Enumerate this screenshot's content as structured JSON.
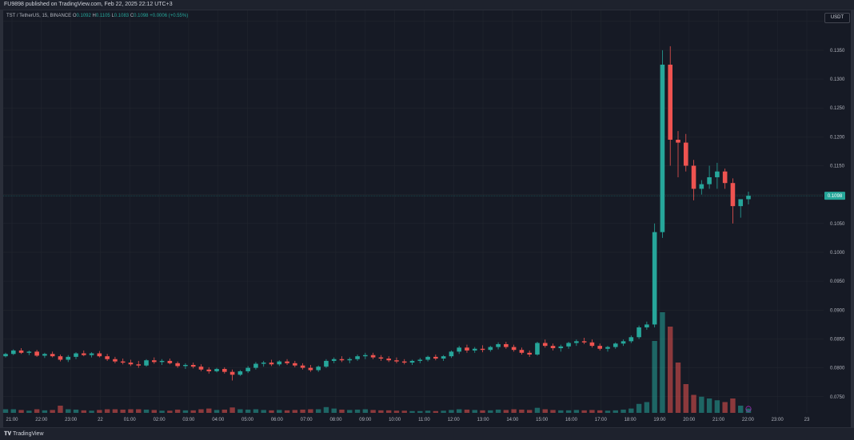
{
  "header": {
    "published_text": "FU9898 published on TradingView.com, Feb 22, 2025 22:12 UTC+3"
  },
  "legend": {
    "symbol": "TST / TetherUS, 15, BINANCE",
    "o_label": "O",
    "o_value": "0.1092",
    "h_label": "H",
    "h_value": "0.1105",
    "l_label": "L",
    "l_value": "0.1083",
    "c_label": "C",
    "c_value": "0.1098",
    "change": "+0.0006 (+0.55%)"
  },
  "currency_label": "USDT",
  "last_price_label": "0.1098",
  "footer": {
    "brand": "TradingView"
  },
  "colors": {
    "up": "#26a69a",
    "down": "#ef5350",
    "background": "#161a25",
    "grid": "#22262f"
  },
  "chart_data": {
    "type": "candlestick",
    "ylim": [
      0.0722,
      0.1419
    ],
    "yticks": [
      "0.1400",
      "0.1350",
      "0.1300",
      "0.1250",
      "0.1200",
      "0.1150",
      "0.1100",
      "0.1050",
      "0.1000",
      "0.0950",
      "0.0900",
      "0.0850",
      "0.0800",
      "0.0750"
    ],
    "xticks": [
      "21:00",
      "22:00",
      "23:00",
      "22",
      "01:00",
      "02:00",
      "03:00",
      "04:00",
      "05:00",
      "06:00",
      "07:00",
      "08:00",
      "09:00",
      "10:00",
      "11:00",
      "12:00",
      "13:00",
      "14:00",
      "15:00",
      "16:00",
      "17:00",
      "18:00",
      "19:00",
      "20:00",
      "21:00",
      "22:00",
      "23:00",
      "23"
    ],
    "last_price": 0.1098,
    "candles": [
      [
        0.082,
        0.0826,
        0.0818,
        0.0824,
        1
      ],
      [
        0.0824,
        0.0832,
        0.0822,
        0.083,
        1
      ],
      [
        0.083,
        0.0834,
        0.0824,
        0.0826,
        0.8
      ],
      [
        0.0826,
        0.083,
        0.0822,
        0.0828,
        0.6
      ],
      [
        0.0828,
        0.0831,
        0.0819,
        0.0821,
        1
      ],
      [
        0.0821,
        0.0826,
        0.0817,
        0.0824,
        0.7
      ],
      [
        0.0824,
        0.0828,
        0.0818,
        0.082,
        0.8
      ],
      [
        0.082,
        0.0823,
        0.0811,
        0.0814,
        2
      ],
      [
        0.0814,
        0.0822,
        0.081,
        0.0819,
        1
      ],
      [
        0.0819,
        0.0827,
        0.0815,
        0.0825,
        0.9
      ],
      [
        0.0825,
        0.083,
        0.082,
        0.0822,
        0.7
      ],
      [
        0.0822,
        0.0827,
        0.0818,
        0.0825,
        0.6
      ],
      [
        0.0825,
        0.0829,
        0.0818,
        0.082,
        0.8
      ],
      [
        0.082,
        0.0824,
        0.0812,
        0.0815,
        1
      ],
      [
        0.0815,
        0.0819,
        0.0808,
        0.0811,
        1
      ],
      [
        0.0811,
        0.0816,
        0.0806,
        0.0809,
        0.9
      ],
      [
        0.0809,
        0.0814,
        0.0803,
        0.0806,
        1
      ],
      [
        0.0806,
        0.0812,
        0.08,
        0.0804,
        1
      ],
      [
        0.0804,
        0.0815,
        0.0802,
        0.0813,
        0.9
      ],
      [
        0.0813,
        0.0818,
        0.0807,
        0.081,
        0.8
      ],
      [
        0.081,
        0.0815,
        0.0805,
        0.0812,
        0.6
      ],
      [
        0.0812,
        0.0816,
        0.0806,
        0.0808,
        0.6
      ],
      [
        0.0808,
        0.0811,
        0.08,
        0.0803,
        0.9
      ],
      [
        0.0803,
        0.0808,
        0.0798,
        0.0805,
        0.7
      ],
      [
        0.0805,
        0.0809,
        0.0799,
        0.0802,
        0.7
      ],
      [
        0.0802,
        0.0806,
        0.0794,
        0.0797,
        1
      ],
      [
        0.0797,
        0.0801,
        0.079,
        0.0794,
        1.2
      ],
      [
        0.0794,
        0.08,
        0.0792,
        0.0798,
        0.8
      ],
      [
        0.0798,
        0.0801,
        0.079,
        0.0793,
        0.9
      ],
      [
        0.0793,
        0.0797,
        0.0778,
        0.0788,
        1.5
      ],
      [
        0.0788,
        0.0796,
        0.0786,
        0.0794,
        1
      ],
      [
        0.0794,
        0.0803,
        0.0791,
        0.08,
        0.9
      ],
      [
        0.08,
        0.081,
        0.0797,
        0.0807,
        1
      ],
      [
        0.0807,
        0.0812,
        0.0802,
        0.0809,
        0.8
      ],
      [
        0.0809,
        0.0814,
        0.0803,
        0.0806,
        0.7
      ],
      [
        0.0806,
        0.0813,
        0.0803,
        0.0811,
        0.8
      ],
      [
        0.0811,
        0.0815,
        0.0805,
        0.0808,
        0.7
      ],
      [
        0.0808,
        0.0812,
        0.0801,
        0.0804,
        0.8
      ],
      [
        0.0804,
        0.0808,
        0.0797,
        0.08,
        0.9
      ],
      [
        0.08,
        0.0805,
        0.0793,
        0.0796,
        1
      ],
      [
        0.0796,
        0.0804,
        0.0793,
        0.0802,
        1
      ],
      [
        0.0802,
        0.0815,
        0.08,
        0.0812,
        1.6
      ],
      [
        0.0812,
        0.0818,
        0.0808,
        0.0815,
        1.2
      ],
      [
        0.0815,
        0.082,
        0.081,
        0.0813,
        0.9
      ],
      [
        0.0813,
        0.0818,
        0.0808,
        0.0815,
        0.8
      ],
      [
        0.0815,
        0.0823,
        0.0812,
        0.082,
        0.9
      ],
      [
        0.082,
        0.0826,
        0.0815,
        0.0822,
        1
      ],
      [
        0.0822,
        0.0826,
        0.0815,
        0.0818,
        0.8
      ],
      [
        0.0818,
        0.0822,
        0.0812,
        0.0816,
        0.7
      ],
      [
        0.0816,
        0.082,
        0.081,
        0.0813,
        0.7
      ],
      [
        0.0813,
        0.0818,
        0.0808,
        0.0811,
        0.6
      ],
      [
        0.0811,
        0.0815,
        0.0806,
        0.0809,
        0.6
      ],
      [
        0.0809,
        0.0814,
        0.0805,
        0.0812,
        0.5
      ],
      [
        0.0812,
        0.0817,
        0.0808,
        0.0814,
        0.5
      ],
      [
        0.0814,
        0.0821,
        0.0811,
        0.0819,
        0.6
      ],
      [
        0.0819,
        0.0823,
        0.0813,
        0.0816,
        0.5
      ],
      [
        0.0816,
        0.0822,
        0.0812,
        0.082,
        0.6
      ],
      [
        0.082,
        0.083,
        0.0817,
        0.0828,
        0.8
      ],
      [
        0.0828,
        0.0838,
        0.0824,
        0.0835,
        1
      ],
      [
        0.0835,
        0.084,
        0.0826,
        0.083,
        0.9
      ],
      [
        0.083,
        0.0836,
        0.0826,
        0.0833,
        0.8
      ],
      [
        0.0833,
        0.0839,
        0.0827,
        0.0831,
        0.7
      ],
      [
        0.0831,
        0.0838,
        0.0828,
        0.0836,
        0.7
      ],
      [
        0.0836,
        0.0844,
        0.0832,
        0.0841,
        0.9
      ],
      [
        0.0841,
        0.0845,
        0.0833,
        0.0836,
        0.8
      ],
      [
        0.0836,
        0.084,
        0.0828,
        0.0831,
        1
      ],
      [
        0.0831,
        0.0835,
        0.0823,
        0.0826,
        0.9
      ],
      [
        0.0826,
        0.083,
        0.0819,
        0.0823,
        0.8
      ],
      [
        0.0823,
        0.0845,
        0.0821,
        0.0843,
        1.4
      ],
      [
        0.0843,
        0.0849,
        0.0835,
        0.0838,
        1
      ],
      [
        0.0838,
        0.0842,
        0.083,
        0.0834,
        0.8
      ],
      [
        0.0834,
        0.084,
        0.0828,
        0.0837,
        0.7
      ],
      [
        0.0837,
        0.0845,
        0.0833,
        0.0843,
        0.7
      ],
      [
        0.0843,
        0.0849,
        0.0838,
        0.0846,
        0.8
      ],
      [
        0.0846,
        0.0852,
        0.0841,
        0.0844,
        0.7
      ],
      [
        0.0844,
        0.0849,
        0.0835,
        0.0838,
        0.8
      ],
      [
        0.0838,
        0.0842,
        0.083,
        0.0833,
        0.7
      ],
      [
        0.0833,
        0.0838,
        0.0828,
        0.0836,
        0.6
      ],
      [
        0.0836,
        0.0844,
        0.0833,
        0.0842,
        0.7
      ],
      [
        0.0842,
        0.0849,
        0.0838,
        0.0846,
        0.9
      ],
      [
        0.0846,
        0.0856,
        0.0843,
        0.0853,
        1.2
      ],
      [
        0.0853,
        0.0873,
        0.085,
        0.087,
        2.5
      ],
      [
        0.087,
        0.088,
        0.0866,
        0.0875,
        3
      ],
      [
        0.0875,
        0.105,
        0.087,
        0.1035,
        20
      ],
      [
        0.1035,
        0.135,
        0.1025,
        0.1325,
        28
      ],
      [
        0.1325,
        0.1357,
        0.115,
        0.1195,
        24
      ],
      [
        0.1195,
        0.121,
        0.113,
        0.119,
        14
      ],
      [
        0.119,
        0.1205,
        0.114,
        0.115,
        8
      ],
      [
        0.115,
        0.116,
        0.109,
        0.111,
        5
      ],
      [
        0.111,
        0.1125,
        0.11,
        0.1118,
        4.5
      ],
      [
        0.1118,
        0.115,
        0.111,
        0.113,
        4
      ],
      [
        0.113,
        0.1155,
        0.111,
        0.114,
        3.5
      ],
      [
        0.114,
        0.1145,
        0.111,
        0.112,
        3
      ],
      [
        0.112,
        0.1128,
        0.105,
        0.108,
        4
      ],
      [
        0.108,
        0.1092,
        0.106,
        0.1092,
        2
      ],
      [
        0.1092,
        0.1105,
        0.1083,
        0.1098,
        1.2
      ]
    ]
  }
}
